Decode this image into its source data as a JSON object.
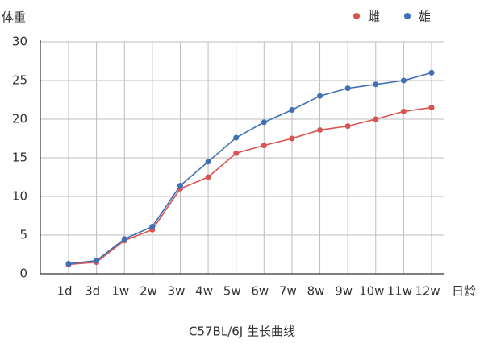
{
  "chart_data": {
    "type": "line",
    "title": "C57BL/6J 生长曲线",
    "y_label": "体重",
    "x_label": "日龄",
    "categories": [
      "1d",
      "3d",
      "1w",
      "2w",
      "3w",
      "4w",
      "5w",
      "6w",
      "7w",
      "8w",
      "9w",
      "10w",
      "11w",
      "12w"
    ],
    "series": [
      {
        "name": "雌",
        "color": "#d9534f",
        "values": [
          1.2,
          1.5,
          4.3,
          5.7,
          11.0,
          12.5,
          15.6,
          16.6,
          17.5,
          18.6,
          19.1,
          20.0,
          21.0,
          21.5
        ]
      },
      {
        "name": "雄",
        "color": "#3f6fb5",
        "values": [
          1.3,
          1.7,
          4.5,
          6.1,
          11.4,
          14.5,
          17.6,
          19.6,
          21.2,
          23.0,
          24.0,
          24.5,
          25.0,
          26.0
        ]
      }
    ],
    "ylim": [
      0,
      30
    ],
    "yticks": [
      0,
      5,
      10,
      15,
      20,
      25,
      30
    ],
    "grid": true,
    "legend": "top-right"
  }
}
